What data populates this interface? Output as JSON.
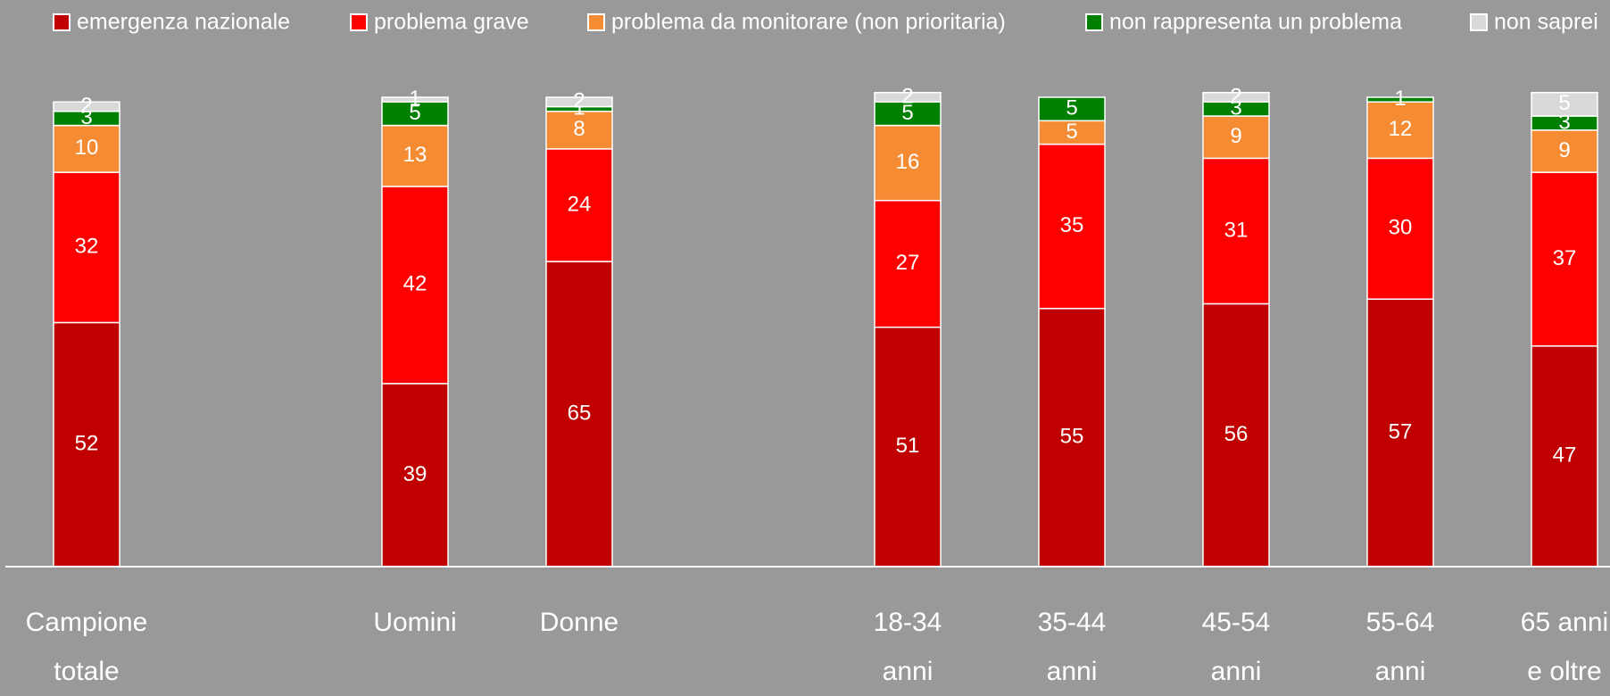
{
  "chart_data": {
    "type": "stacked_bar",
    "categories": [
      "Campione\ntotale",
      null,
      "Uomini",
      "Donne",
      null,
      "18-34\nanni",
      "35-44\nanni",
      "45-54\nanni",
      "55-64\nanni",
      "65 anni\ne oltre"
    ],
    "series": [
      {
        "name": "emergenza nazionale",
        "color": "#c00000",
        "values": [
          52,
          null,
          39,
          65,
          null,
          51,
          55,
          56,
          57,
          47
        ]
      },
      {
        "name": "problema grave",
        "color": "#ff0000",
        "values": [
          32,
          null,
          42,
          24,
          null,
          27,
          35,
          31,
          30,
          37
        ]
      },
      {
        "name": "problema da monitorare (non prioritaria)",
        "color": "#f58b33",
        "values": [
          10,
          null,
          13,
          8,
          null,
          16,
          5,
          9,
          12,
          9
        ]
      },
      {
        "name": "non rappresenta un problema",
        "color": "#008000",
        "values": [
          3,
          null,
          5,
          1,
          null,
          5,
          5,
          3,
          1,
          3
        ]
      },
      {
        "name": "non saprei",
        "color": "#d9d9d9",
        "values": [
          2,
          null,
          1,
          2,
          null,
          2,
          null,
          2,
          null,
          5
        ]
      }
    ],
    "ylim": [
      0,
      100
    ]
  }
}
